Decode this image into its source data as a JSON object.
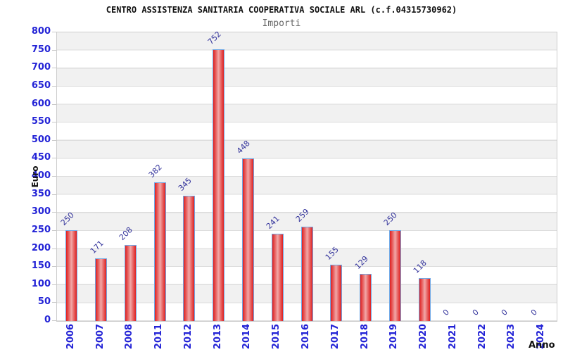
{
  "header": {
    "title": "CENTRO ASSISTENZA SANITARIA COOPERATIVA SOCIALE ARL (c.f.04315730962)",
    "subtitle": "Importi"
  },
  "chart_data": {
    "type": "bar",
    "title": "CENTRO ASSISTENZA SANITARIA COOPERATIVA SOCIALE ARL (c.f.04315730962)",
    "subtitle": "Importi",
    "xlabel": "Anno",
    "ylabel": "Euro",
    "categories": [
      "2006",
      "2007",
      "2008",
      "2011",
      "2012",
      "2013",
      "2014",
      "2015",
      "2016",
      "2017",
      "2018",
      "2019",
      "2020",
      "2021",
      "2022",
      "2023",
      "2024"
    ],
    "values": [
      250,
      171,
      208,
      382,
      345,
      752,
      448,
      241,
      259,
      155,
      129,
      250,
      118,
      0,
      0,
      0,
      0
    ],
    "ylim": [
      0,
      800
    ],
    "ytick_step": 50,
    "yticks": [
      0,
      50,
      100,
      150,
      200,
      250,
      300,
      350,
      400,
      450,
      500,
      550,
      600,
      650,
      700,
      750,
      800
    ],
    "grid": "horizontal-bands",
    "legend": "none",
    "colors": {
      "bar_edge": "#df1f1f",
      "bar_center": "#f2a8a8",
      "bar_border": "#6fa8e6",
      "axis_tick_label": "#2323d6",
      "value_label": "#32329b",
      "band_fill": "#f1f1f1",
      "plot_border": "#cccccc",
      "title_text": "#111111",
      "subtitle_text": "#666666"
    }
  }
}
